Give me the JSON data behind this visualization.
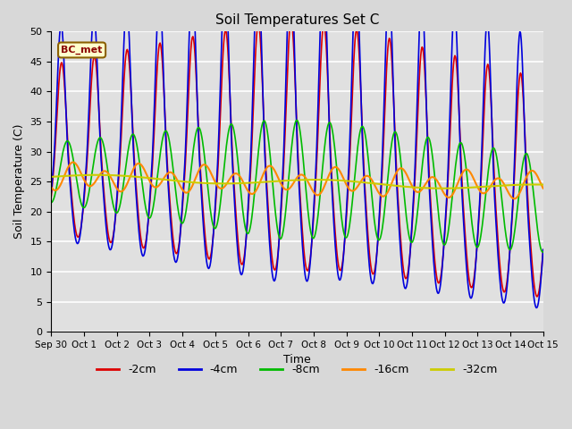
{
  "title": "Soil Temperatures Set C",
  "xlabel": "Time",
  "ylabel": "Soil Temperature (C)",
  "ylim": [
    0,
    50
  ],
  "yticks": [
    0,
    5,
    10,
    15,
    20,
    25,
    30,
    35,
    40,
    45,
    50
  ],
  "bg_color": "#d8d8d8",
  "plot_bg": "#e0e0e0",
  "grid_color": "#ffffff",
  "series": [
    {
      "label": "-2cm",
      "color": "#dd0000",
      "lw": 1.2
    },
    {
      "label": "-4cm",
      "color": "#0000dd",
      "lw": 1.2
    },
    {
      "label": "-8cm",
      "color": "#00bb00",
      "lw": 1.2
    },
    {
      "label": "-16cm",
      "color": "#ff8800",
      "lw": 1.5
    },
    {
      "label": "-32cm",
      "color": "#cccc00",
      "lw": 1.5
    }
  ],
  "xtick_labels": [
    "Sep 30",
    "Oct 1",
    "Oct 2",
    "Oct 3",
    "Oct 4",
    "Oct 5",
    "Oct 6",
    "Oct 7",
    "Oct 8",
    "Oct 9",
    "Oct 10",
    "Oct 11",
    "Oct 12",
    "Oct 13",
    "Oct 14",
    "Oct 15"
  ],
  "annotation": "BC_met",
  "n_points": 720
}
